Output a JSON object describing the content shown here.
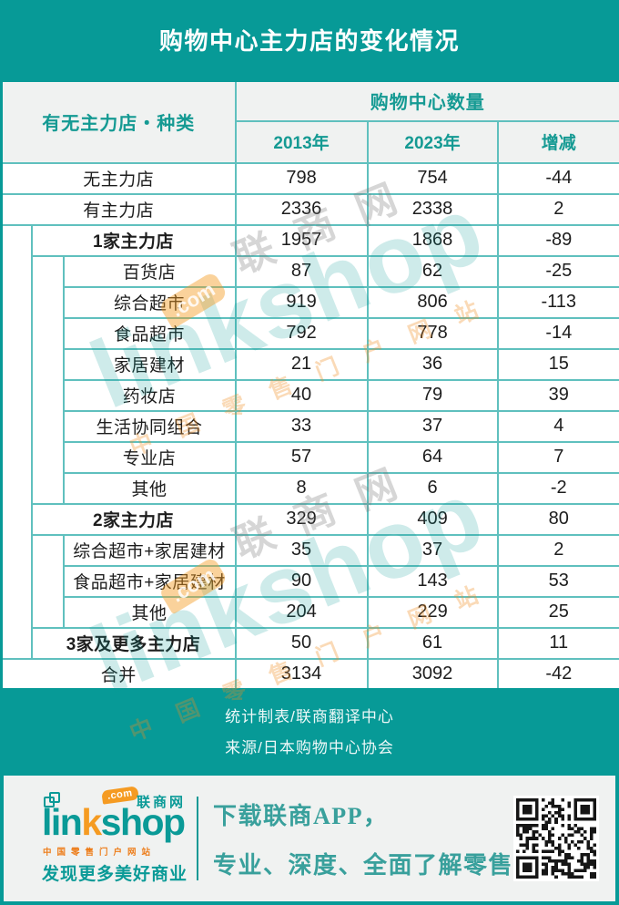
{
  "title": "购物中心主力店的变化情况",
  "chart_data": {
    "type": "table",
    "title": "购物中心主力店的变化情况",
    "group_header": "购物中心数量",
    "columns": [
      "有无主力店・种类",
      "2013年",
      "2023年",
      "增减"
    ],
    "rows": [
      {
        "label": "无主力店",
        "level": 0,
        "emphasis": false,
        "values": [
          798,
          754,
          -44
        ]
      },
      {
        "label": "有主力店",
        "level": 0,
        "emphasis": false,
        "values": [
          2336,
          2338,
          2
        ]
      },
      {
        "label": "1家主力店",
        "level": 1,
        "emphasis": true,
        "values": [
          1957,
          1868,
          -89
        ]
      },
      {
        "label": "百货店",
        "level": 2,
        "emphasis": false,
        "values": [
          87,
          62,
          -25
        ]
      },
      {
        "label": "综合超市",
        "level": 2,
        "emphasis": false,
        "values": [
          919,
          806,
          -113
        ]
      },
      {
        "label": "食品超市",
        "level": 2,
        "emphasis": false,
        "values": [
          792,
          778,
          -14
        ]
      },
      {
        "label": "家居建材",
        "level": 2,
        "emphasis": false,
        "values": [
          21,
          36,
          15
        ]
      },
      {
        "label": "药妆店",
        "level": 2,
        "emphasis": false,
        "values": [
          40,
          79,
          39
        ]
      },
      {
        "label": "生活协同组合",
        "level": 2,
        "emphasis": false,
        "values": [
          33,
          37,
          4
        ]
      },
      {
        "label": "专业店",
        "level": 2,
        "emphasis": false,
        "values": [
          57,
          64,
          7
        ]
      },
      {
        "label": "其他",
        "level": 2,
        "emphasis": false,
        "values": [
          8,
          6,
          -2
        ]
      },
      {
        "label": "2家主力店",
        "level": 1,
        "emphasis": true,
        "values": [
          329,
          409,
          80
        ]
      },
      {
        "label": "综合超市+家居建材",
        "level": 2,
        "emphasis": false,
        "values": [
          35,
          37,
          2
        ]
      },
      {
        "label": "食品超市+家居建材",
        "level": 2,
        "emphasis": false,
        "values": [
          90,
          143,
          53
        ]
      },
      {
        "label": "其他",
        "level": 2,
        "emphasis": false,
        "values": [
          204,
          229,
          25
        ]
      },
      {
        "label": "3家及更多主力店",
        "level": 1,
        "emphasis": true,
        "values": [
          50,
          61,
          11
        ]
      },
      {
        "label": "合并",
        "level": 0,
        "emphasis": false,
        "values": [
          3134,
          3092,
          -42
        ]
      }
    ]
  },
  "source": {
    "line1": "统计制表/联商翻译中心",
    "line2": "来源/日本购物中心协会"
  },
  "watermark": {
    "brand": "linkshop",
    "com": ".com",
    "cn_name": "联商网",
    "subtitle": "中国零售门户网站"
  },
  "banner": {
    "logo": {
      "part1": "lin",
      "part2": "k",
      "part3": "shop",
      "com_badge": ".com",
      "cn_name": "联商网",
      "subtitle": "中国零售门户网站",
      "slogan": "发现更多美好商业"
    },
    "promo_line1": "下载联商APP，",
    "promo_line2": "专业、深度、全面了解零售"
  },
  "colors": {
    "teal": "#079a97",
    "teal_text": "#159a93",
    "cell_border": "#5fc0be",
    "orange": "#f59b22",
    "header_bg": "#f0f2f1"
  }
}
